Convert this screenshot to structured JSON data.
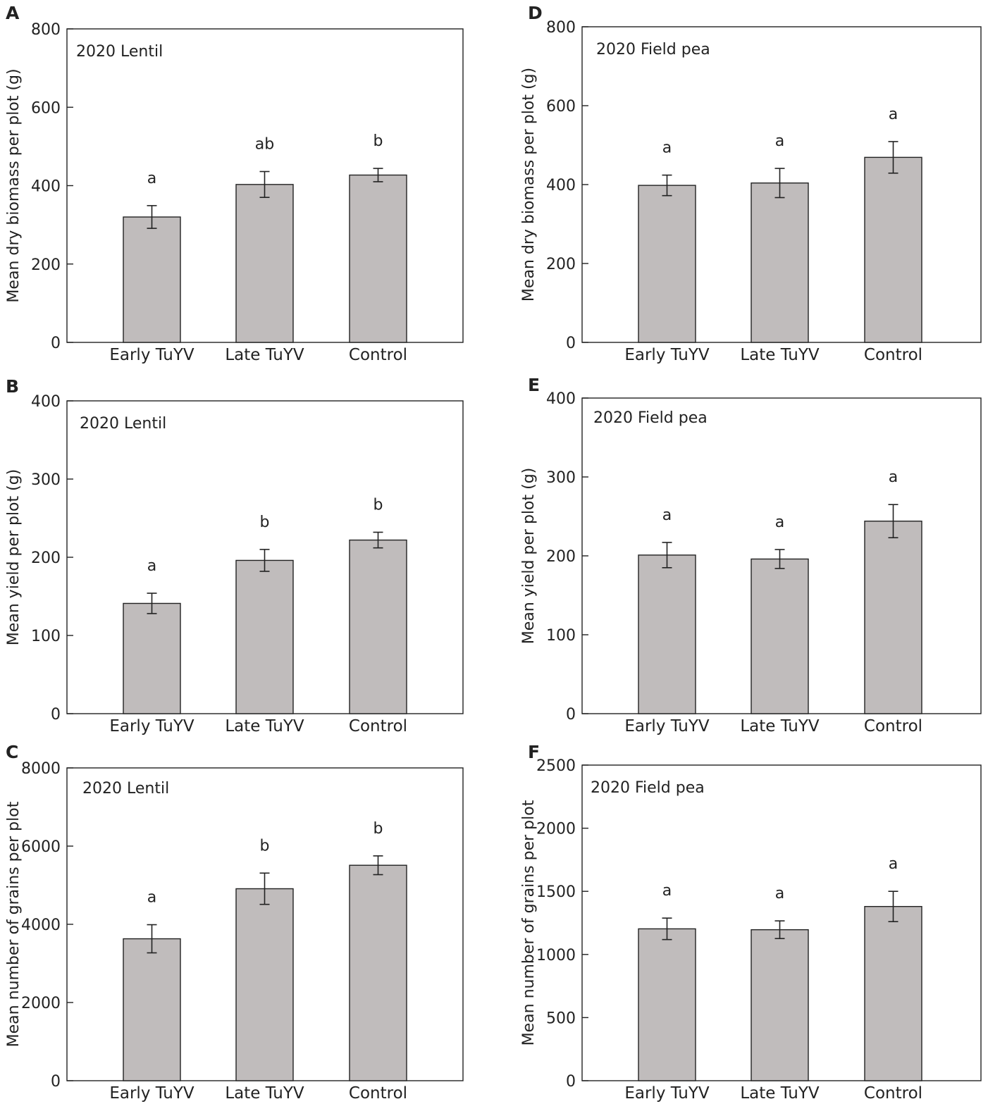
{
  "colors": {
    "bar_fill": "#c0bcbc",
    "line": "#222222"
  },
  "chart_data": [
    {
      "panel": "A",
      "type": "bar",
      "title": "2020 Lentil",
      "ylabel": "Mean dry biomass per plot (g)",
      "categories": [
        "Early TuYV",
        "Late TuYV",
        "Control"
      ],
      "values": [
        320,
        403,
        427
      ],
      "errors": [
        29,
        33,
        17
      ],
      "significance": [
        "a",
        "ab",
        "b"
      ],
      "ylim": [
        0,
        800
      ],
      "yticks": [
        0,
        200,
        400,
        600,
        800
      ]
    },
    {
      "panel": "B",
      "type": "bar",
      "title": "2020 Lentil",
      "ylabel": "Mean yield per plot (g)",
      "categories": [
        "Early TuYV",
        "Late TuYV",
        "Control"
      ],
      "values": [
        141,
        196,
        222
      ],
      "errors": [
        13,
        14,
        10
      ],
      "significance": [
        "a",
        "b",
        "b"
      ],
      "ylim": [
        0,
        400
      ],
      "yticks": [
        0,
        100,
        200,
        300,
        400
      ]
    },
    {
      "panel": "C",
      "type": "bar",
      "title": "2020 Lentil",
      "ylabel": "Mean number of grains per plot",
      "categories": [
        "Early TuYV",
        "Late TuYV",
        "Control"
      ],
      "values": [
        3630,
        4910,
        5510
      ],
      "errors": [
        360,
        400,
        240
      ],
      "significance": [
        "a",
        "b",
        "b"
      ],
      "ylim": [
        0,
        8000
      ],
      "yticks": [
        0,
        2000,
        4000,
        6000,
        8000
      ]
    },
    {
      "panel": "D",
      "type": "bar",
      "title": "2020 Field pea",
      "ylabel": "Mean dry biomass per plot (g)",
      "categories": [
        "Early TuYV",
        "Late TuYV",
        "Control"
      ],
      "values": [
        398,
        404,
        469
      ],
      "errors": [
        26,
        37,
        40
      ],
      "significance": [
        "a",
        "a",
        "a"
      ],
      "ylim": [
        0,
        800
      ],
      "yticks": [
        0,
        200,
        400,
        600,
        800
      ]
    },
    {
      "panel": "E",
      "type": "bar",
      "title": "2020 Field pea",
      "ylabel": "Mean yield per plot (g)",
      "categories": [
        "Early TuYV",
        "Late TuYV",
        "Control"
      ],
      "values": [
        201,
        196,
        244
      ],
      "errors": [
        16,
        12,
        21
      ],
      "significance": [
        "a",
        "a",
        "a"
      ],
      "ylim": [
        0,
        400
      ],
      "yticks": [
        0,
        100,
        200,
        300,
        400
      ]
    },
    {
      "panel": "F",
      "type": "bar",
      "title": "2020 Field pea",
      "ylabel": "Mean number of grains per plot",
      "categories": [
        "Early TuYV",
        "Late TuYV",
        "Control"
      ],
      "values": [
        1203,
        1196,
        1380
      ],
      "errors": [
        85,
        70,
        120
      ],
      "significance": [
        "a",
        "a",
        "a"
      ],
      "ylim": [
        0,
        2500
      ],
      "yticks": [
        0,
        500,
        1000,
        1500,
        2000,
        2500
      ]
    }
  ]
}
